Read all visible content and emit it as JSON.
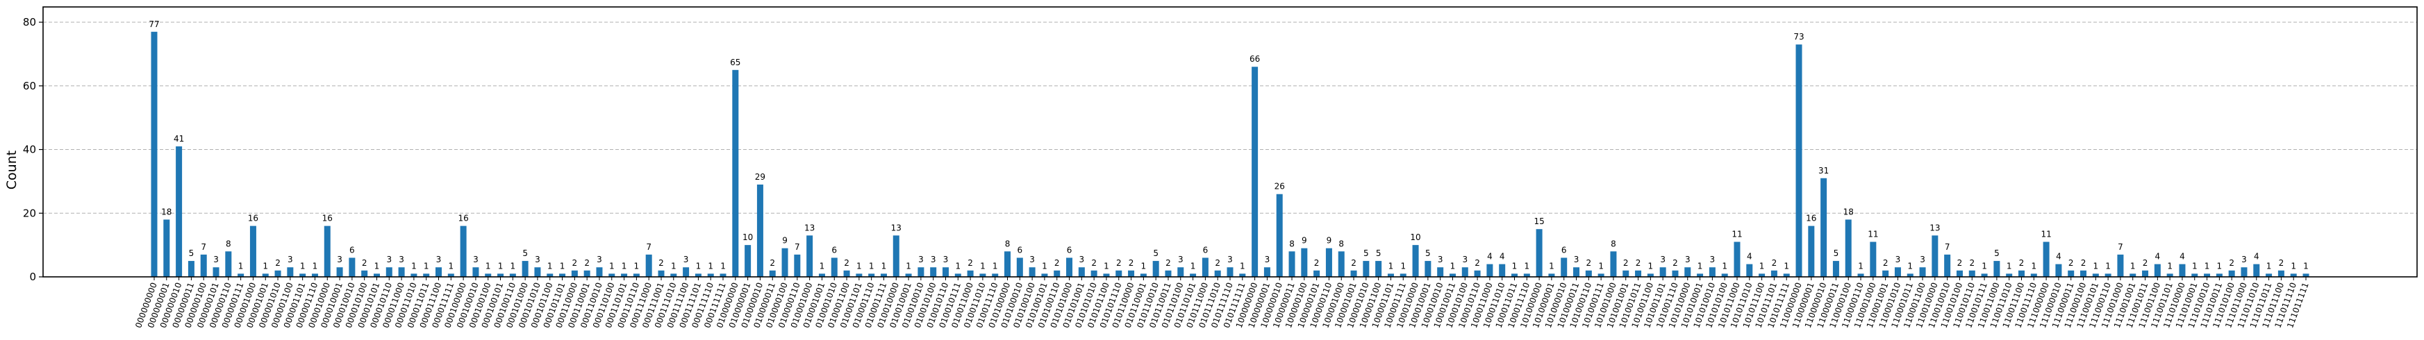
{
  "chart_data": {
    "type": "bar",
    "title": "",
    "xlabel": "",
    "ylabel": "Count",
    "ylim": [
      0,
      84.8
    ],
    "yticks": [
      0,
      20,
      40,
      60,
      80
    ],
    "grid": {
      "axis": "y",
      "style": "dashed",
      "color": "#b0b0b0"
    },
    "legend": null,
    "bar_color": "#1f77b4",
    "show_value_labels": true,
    "categories": [
      "000000000",
      "000000001",
      "000000010",
      "000000011",
      "000000100",
      "000000101",
      "000000110",
      "000000111",
      "000001000",
      "000001001",
      "000001010",
      "000001100",
      "000001101",
      "000001110",
      "000010000",
      "000010001",
      "000010010",
      "000010100",
      "000010101",
      "000010110",
      "000011000",
      "000011010",
      "000011011",
      "000011100",
      "000011111",
      "000100000",
      "000100010",
      "000100100",
      "000100101",
      "000100110",
      "000101000",
      "000101010",
      "000101100",
      "000101101",
      "000110000",
      "000110001",
      "000110010",
      "000110100",
      "000110101",
      "000110110",
      "000111000",
      "000111001",
      "000111010",
      "000111100",
      "000111101",
      "000111110",
      "000111111",
      "010000000",
      "010000001",
      "010000010",
      "010000011",
      "010000100",
      "010000110",
      "010001000",
      "010001001",
      "010001010",
      "010001100",
      "010001101",
      "010001110",
      "010001111",
      "010010000",
      "010010001",
      "010010010",
      "010010100",
      "010010110",
      "010010111",
      "010011000",
      "010011010",
      "010011110",
      "010100000",
      "010100010",
      "010100100",
      "010100101",
      "010100110",
      "010101000",
      "010101001",
      "010101010",
      "010101100",
      "010101110",
      "010110000",
      "010110001",
      "010110010",
      "010110011",
      "010110100",
      "010110101",
      "010111000",
      "010111010",
      "010111110",
      "010111111",
      "100000000",
      "100000001",
      "100000010",
      "100000011",
      "100000100",
      "100000101",
      "100000110",
      "100001000",
      "100001001",
      "100001010",
      "100001100",
      "100001101",
      "100001111",
      "100010000",
      "100010001",
      "100010010",
      "100010011",
      "100010100",
      "100010110",
      "100011000",
      "100011010",
      "100011011",
      "100011110",
      "101000000",
      "101000001",
      "101000010",
      "101000011",
      "101000110",
      "101000111",
      "101001000",
      "101001001",
      "101001011",
      "101001100",
      "101001101",
      "101001110",
      "101010000",
      "101010001",
      "101010010",
      "101010100",
      "101011000",
      "101011010",
      "101011100",
      "101011101",
      "101011111",
      "110000000",
      "110000001",
      "110000010",
      "110000011",
      "110000100",
      "110000110",
      "110001000",
      "110001001",
      "110001010",
      "110001011",
      "110001100",
      "110010000",
      "110010010",
      "110010100",
      "110010110",
      "110010111",
      "110011000",
      "110011010",
      "110011100",
      "110011110",
      "111000000",
      "111000010",
      "111000011",
      "111000100",
      "111000101",
      "111000110",
      "111001000",
      "111001001",
      "111001011",
      "111001100",
      "111001101",
      "111010000",
      "111010001",
      "111010010",
      "111010011",
      "111010100",
      "111011000",
      "111011010",
      "111011011",
      "111011100",
      "111011110",
      "111011111"
    ],
    "values": [
      77,
      18,
      41,
      5,
      7,
      3,
      8,
      1,
      16,
      1,
      2,
      3,
      1,
      1,
      16,
      3,
      6,
      2,
      1,
      3,
      3,
      1,
      1,
      3,
      1,
      16,
      3,
      1,
      1,
      1,
      5,
      3,
      1,
      1,
      2,
      2,
      3,
      1,
      1,
      1,
      7,
      2,
      1,
      3,
      1,
      1,
      1,
      65,
      10,
      29,
      2,
      9,
      7,
      13,
      1,
      6,
      2,
      1,
      1,
      1,
      13,
      1,
      3,
      3,
      3,
      1,
      2,
      1,
      1,
      8,
      6,
      3,
      1,
      2,
      6,
      3,
      2,
      1,
      2,
      2,
      1,
      5,
      2,
      3,
      1,
      6,
      2,
      3,
      1,
      66,
      3,
      26,
      8,
      9,
      2,
      9,
      8,
      2,
      5,
      5,
      1,
      1,
      10,
      5,
      3,
      1,
      3,
      2,
      4,
      4,
      1,
      1,
      15,
      1,
      6,
      3,
      2,
      1,
      8,
      2,
      2,
      1,
      3,
      2,
      3,
      1,
      3,
      1,
      11,
      4,
      1,
      2,
      1,
      73,
      16,
      31,
      5,
      18,
      1,
      11,
      2,
      3,
      1,
      3,
      13,
      7,
      2,
      2,
      1,
      5,
      1,
      2,
      1,
      11,
      4,
      2,
      2,
      1,
      1,
      7,
      1,
      2,
      4,
      1,
      4,
      1,
      1,
      1,
      2,
      3,
      4,
      1,
      2,
      1,
      1
    ]
  },
  "axes": {
    "ylabel": "Count"
  }
}
